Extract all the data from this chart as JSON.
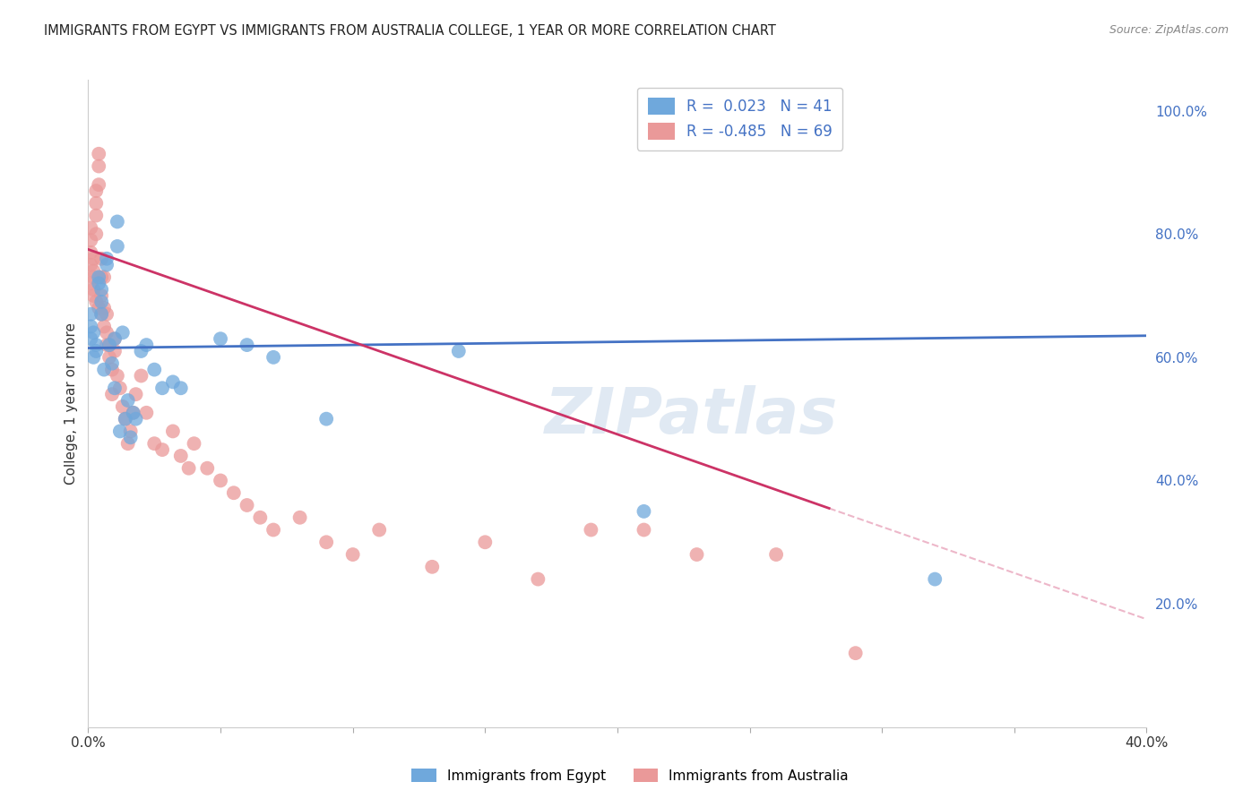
{
  "title": "IMMIGRANTS FROM EGYPT VS IMMIGRANTS FROM AUSTRALIA COLLEGE, 1 YEAR OR MORE CORRELATION CHART",
  "source": "Source: ZipAtlas.com",
  "ylabel": "College, 1 year or more",
  "xlim": [
    0.0,
    0.4
  ],
  "ylim": [
    0.0,
    1.05
  ],
  "watermark": "ZIPatlas",
  "legend_egypt_R": "0.023",
  "legend_egypt_N": "41",
  "legend_australia_R": "-0.485",
  "legend_australia_N": "69",
  "color_egypt": "#6fa8dc",
  "color_australia": "#ea9999",
  "color_egypt_line": "#4472c4",
  "color_australia_line": "#cc3366",
  "egypt_x": [
    0.001,
    0.001,
    0.001,
    0.002,
    0.002,
    0.003,
    0.003,
    0.004,
    0.004,
    0.005,
    0.005,
    0.005,
    0.006,
    0.007,
    0.007,
    0.008,
    0.009,
    0.01,
    0.01,
    0.011,
    0.011,
    0.012,
    0.013,
    0.014,
    0.015,
    0.016,
    0.017,
    0.018,
    0.02,
    0.022,
    0.025,
    0.028,
    0.032,
    0.035,
    0.05,
    0.06,
    0.07,
    0.09,
    0.14,
    0.21,
    0.32
  ],
  "egypt_y": [
    0.63,
    0.65,
    0.67,
    0.6,
    0.64,
    0.62,
    0.61,
    0.72,
    0.73,
    0.71,
    0.69,
    0.67,
    0.58,
    0.76,
    0.75,
    0.62,
    0.59,
    0.63,
    0.55,
    0.82,
    0.78,
    0.48,
    0.64,
    0.5,
    0.53,
    0.47,
    0.51,
    0.5,
    0.61,
    0.62,
    0.58,
    0.55,
    0.56,
    0.55,
    0.63,
    0.62,
    0.6,
    0.5,
    0.61,
    0.35,
    0.24
  ],
  "australia_x": [
    0.001,
    0.001,
    0.001,
    0.001,
    0.002,
    0.002,
    0.002,
    0.002,
    0.003,
    0.003,
    0.003,
    0.003,
    0.004,
    0.004,
    0.004,
    0.005,
    0.005,
    0.005,
    0.005,
    0.006,
    0.006,
    0.006,
    0.007,
    0.007,
    0.007,
    0.008,
    0.008,
    0.009,
    0.009,
    0.01,
    0.01,
    0.011,
    0.012,
    0.013,
    0.014,
    0.015,
    0.016,
    0.017,
    0.018,
    0.02,
    0.022,
    0.025,
    0.028,
    0.032,
    0.035,
    0.038,
    0.04,
    0.045,
    0.05,
    0.055,
    0.06,
    0.065,
    0.07,
    0.08,
    0.09,
    0.1,
    0.11,
    0.13,
    0.15,
    0.17,
    0.19,
    0.21,
    0.23,
    0.26,
    0.29,
    0.001,
    0.002,
    0.003,
    0.004
  ],
  "australia_y": [
    0.75,
    0.77,
    0.79,
    0.81,
    0.74,
    0.76,
    0.73,
    0.7,
    0.8,
    0.83,
    0.85,
    0.87,
    0.88,
    0.91,
    0.93,
    0.67,
    0.7,
    0.73,
    0.76,
    0.65,
    0.68,
    0.73,
    0.62,
    0.64,
    0.67,
    0.6,
    0.62,
    0.54,
    0.58,
    0.61,
    0.63,
    0.57,
    0.55,
    0.52,
    0.5,
    0.46,
    0.48,
    0.51,
    0.54,
    0.57,
    0.51,
    0.46,
    0.45,
    0.48,
    0.44,
    0.42,
    0.46,
    0.42,
    0.4,
    0.38,
    0.36,
    0.34,
    0.32,
    0.34,
    0.3,
    0.28,
    0.32,
    0.26,
    0.3,
    0.24,
    0.32,
    0.32,
    0.28,
    0.28,
    0.12,
    0.72,
    0.71,
    0.69,
    0.68
  ],
  "background_color": "#ffffff",
  "grid_color": "#cccccc"
}
